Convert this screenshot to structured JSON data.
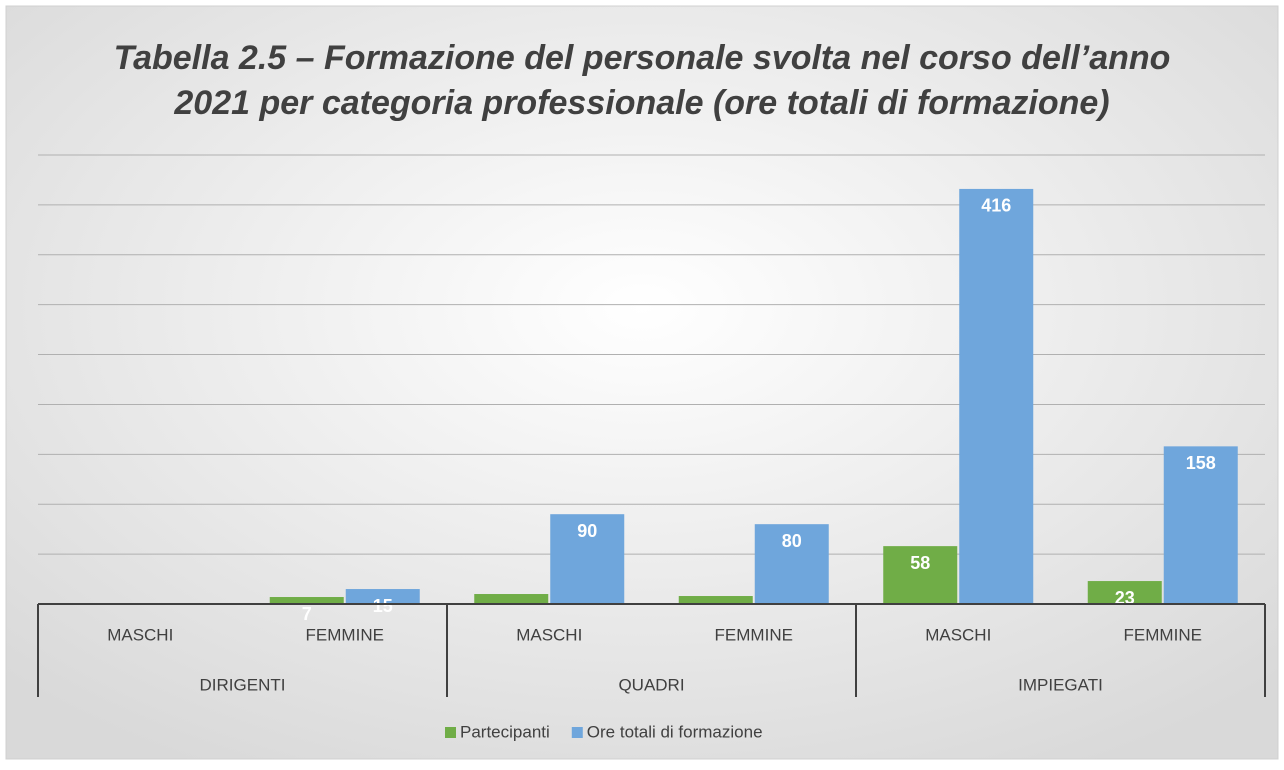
{
  "chart_data": {
    "type": "bar",
    "title": [
      "Tabella 2.5 – Formazione del personale svolta nel corso dell’anno",
      "2021 per categoria professionale (ore totali di formazione)"
    ],
    "categories": [
      "MASCHI",
      "FEMMINE",
      "MASCHI",
      "FEMMINE",
      "MASCHI",
      "FEMMINE"
    ],
    "groups": [
      "DIRIGENTI",
      "QUADRI",
      "IMPIEGATI"
    ],
    "series": [
      {
        "name": "Partecipanti",
        "color": "#70ad47",
        "values": [
          null,
          7,
          10,
          8,
          58,
          23
        ],
        "value_labels": [
          null,
          "7",
          null,
          null,
          "58",
          "23"
        ]
      },
      {
        "name": "Ore totali di formazione",
        "color": "#6fa6dc",
        "values": [
          null,
          15,
          90,
          80,
          416,
          158
        ],
        "value_labels": [
          null,
          "15",
          "90",
          "80",
          "416",
          "158"
        ]
      }
    ],
    "ylim": [
      0,
      450
    ],
    "yticks": [
      0,
      50,
      100,
      150,
      200,
      250,
      300,
      350,
      400,
      450
    ],
    "grid": true,
    "legend": "bottom"
  }
}
